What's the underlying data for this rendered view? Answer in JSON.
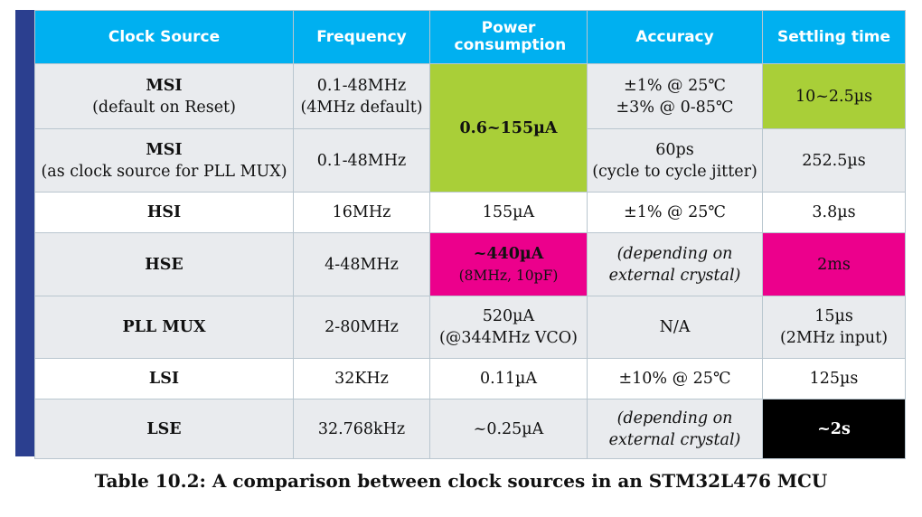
{
  "headers": [
    "Clock Source",
    "Frequency",
    "Power consumption",
    "Accuracy",
    "Settling time"
  ],
  "rows": [
    {
      "source": "MSI",
      "source_sub": "(default on Reset)",
      "frequency": [
        "0.1-48MHz",
        "(4MHz default)"
      ],
      "power": [
        "0.6~155µA"
      ],
      "accuracy": [
        "±1% @ 25℃",
        "±3% @ 0-85℃"
      ],
      "settling": [
        "10~2.5µs"
      ]
    },
    {
      "source": "MSI",
      "source_sub": "(as clock source for PLL MUX)",
      "frequency": [
        "0.1-48MHz"
      ],
      "accuracy": [
        "60ps",
        "(cycle to cycle jitter)"
      ],
      "settling": [
        "252.5µs"
      ]
    },
    {
      "source": "HSI",
      "frequency": [
        "16MHz"
      ],
      "power": [
        "155µA"
      ],
      "accuracy": [
        "±1% @ 25℃"
      ],
      "settling": [
        "3.8µs"
      ]
    },
    {
      "source": "HSE",
      "frequency": [
        "4-48MHz"
      ],
      "power": [
        "~440µA",
        "(8MHz, 10pF)"
      ],
      "accuracy": [
        "(depending on",
        "external crystal)"
      ],
      "settling": [
        "2ms"
      ]
    },
    {
      "source": "PLL MUX",
      "frequency": [
        "2-80MHz"
      ],
      "power": [
        "520µA",
        "(@344MHz VCO)"
      ],
      "accuracy": [
        "N/A"
      ],
      "settling": [
        "15µs",
        "(2MHz input)"
      ]
    },
    {
      "source": "LSI",
      "frequency": [
        "32KHz"
      ],
      "power": [
        "0.11µA"
      ],
      "accuracy": [
        "±10% @ 25℃"
      ],
      "settling": [
        "125µs"
      ]
    },
    {
      "source": "LSE",
      "frequency": [
        "32.768kHz"
      ],
      "power": [
        "~0.25µA"
      ],
      "accuracy": [
        "(depending on",
        "external crystal)"
      ],
      "settling": [
        "~2s"
      ]
    }
  ],
  "caption": "Table 10.2: A comparison between clock sources in an STM32L476 MCU",
  "colors": {
    "header": "#00b0f0",
    "sidebar": "#2b3f8f",
    "green": "#a9cf38",
    "pink": "#ec008c",
    "black": "#000000",
    "shade": "#e9ebee"
  }
}
